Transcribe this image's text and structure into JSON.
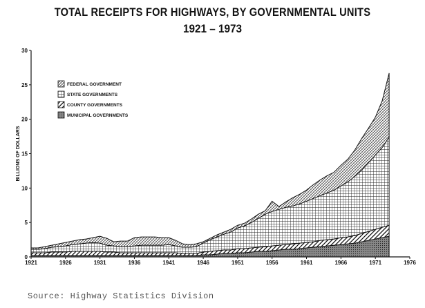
{
  "page": {
    "title_line1": "TOTAL RECEIPTS FOR HIGHWAYS, BY GOVERNMENTAL UNITS",
    "title_line2": "1921 – 1973",
    "source": "Source:  Highway Statistics Division"
  },
  "chart_data": {
    "type": "area",
    "stacked": true,
    "title": "TOTAL RECEIPTS FOR HIGHWAYS, BY GOVERNMENTAL UNITS",
    "subtitle": "1921 – 1973",
    "xlabel": "",
    "ylabel": "BILLIONS OF DOLLARS",
    "xlim": [
      1921,
      1976
    ],
    "ylim": [
      0,
      30
    ],
    "x_ticks": [
      1921,
      1926,
      1931,
      1936,
      1941,
      1946,
      1951,
      1956,
      1961,
      1966,
      1971,
      1976
    ],
    "y_ticks": [
      0,
      5,
      10,
      15,
      20,
      25,
      30
    ],
    "legend_position": "upper-left",
    "x": [
      1921,
      1922,
      1923,
      1924,
      1925,
      1926,
      1927,
      1928,
      1929,
      1930,
      1931,
      1932,
      1933,
      1934,
      1935,
      1936,
      1937,
      1938,
      1939,
      1940,
      1941,
      1942,
      1943,
      1944,
      1945,
      1946,
      1947,
      1948,
      1949,
      1950,
      1951,
      1952,
      1953,
      1954,
      1955,
      1956,
      1957,
      1958,
      1959,
      1960,
      1961,
      1962,
      1963,
      1964,
      1965,
      1966,
      1967,
      1968,
      1969,
      1970,
      1971,
      1972,
      1973
    ],
    "series": [
      {
        "name": "MUNICIPAL GOVERNMENTS",
        "values": [
          0.2,
          0.2,
          0.2,
          0.2,
          0.2,
          0.2,
          0.2,
          0.2,
          0.2,
          0.2,
          0.2,
          0.2,
          0.2,
          0.2,
          0.2,
          0.2,
          0.2,
          0.2,
          0.2,
          0.2,
          0.2,
          0.2,
          0.2,
          0.2,
          0.2,
          0.3,
          0.3,
          0.4,
          0.5,
          0.5,
          0.6,
          0.6,
          0.7,
          0.8,
          0.8,
          0.9,
          1.0,
          1.1,
          1.1,
          1.2,
          1.3,
          1.4,
          1.5,
          1.6,
          1.7,
          1.8,
          1.9,
          2.0,
          2.2,
          2.4,
          2.6,
          2.8,
          3.0
        ]
      },
      {
        "name": "COUNTY GOVERNMENTS",
        "values": [
          0.4,
          0.4,
          0.4,
          0.5,
          0.5,
          0.5,
          0.6,
          0.6,
          0.6,
          0.6,
          0.6,
          0.5,
          0.5,
          0.4,
          0.4,
          0.4,
          0.4,
          0.4,
          0.4,
          0.4,
          0.4,
          0.4,
          0.3,
          0.3,
          0.3,
          0.4,
          0.5,
          0.5,
          0.5,
          0.5,
          0.6,
          0.6,
          0.6,
          0.6,
          0.7,
          0.7,
          0.7,
          0.7,
          0.8,
          0.8,
          0.8,
          0.8,
          0.9,
          0.9,
          0.9,
          1.0,
          1.0,
          1.1,
          1.2,
          1.3,
          1.4,
          1.5,
          1.6
        ]
      },
      {
        "name": "STATE GOVERNMENTS",
        "values": [
          0.5,
          0.5,
          0.6,
          0.7,
          0.8,
          0.9,
          1.0,
          1.1,
          1.2,
          1.3,
          1.2,
          1.0,
          0.9,
          0.9,
          0.9,
          1.0,
          1.1,
          1.1,
          1.1,
          1.1,
          1.2,
          1.0,
          0.9,
          0.9,
          1.0,
          1.3,
          1.7,
          2.0,
          2.3,
          2.6,
          3.0,
          3.3,
          3.7,
          4.2,
          4.7,
          5.0,
          5.2,
          5.4,
          5.5,
          5.7,
          6.0,
          6.3,
          6.5,
          6.8,
          7.1,
          7.5,
          8.0,
          8.6,
          9.2,
          10.0,
          10.8,
          11.6,
          12.8
        ]
      },
      {
        "name": "FEDERAL GOVERNMENT",
        "values": [
          0.2,
          0.2,
          0.3,
          0.3,
          0.4,
          0.5,
          0.5,
          0.6,
          0.6,
          0.7,
          1.0,
          1.0,
          0.6,
          0.8,
          0.8,
          1.2,
          1.2,
          1.2,
          1.2,
          1.1,
          1.0,
          0.8,
          0.5,
          0.4,
          0.4,
          0.2,
          0.2,
          0.3,
          0.3,
          0.4,
          0.4,
          0.4,
          0.5,
          0.6,
          0.5,
          1.5,
          0.4,
          0.8,
          1.2,
          1.4,
          1.6,
          2.0,
          2.3,
          2.5,
          2.6,
          3.0,
          3.3,
          3.8,
          4.6,
          5.0,
          5.5,
          6.8,
          9.3
        ]
      }
    ]
  }
}
